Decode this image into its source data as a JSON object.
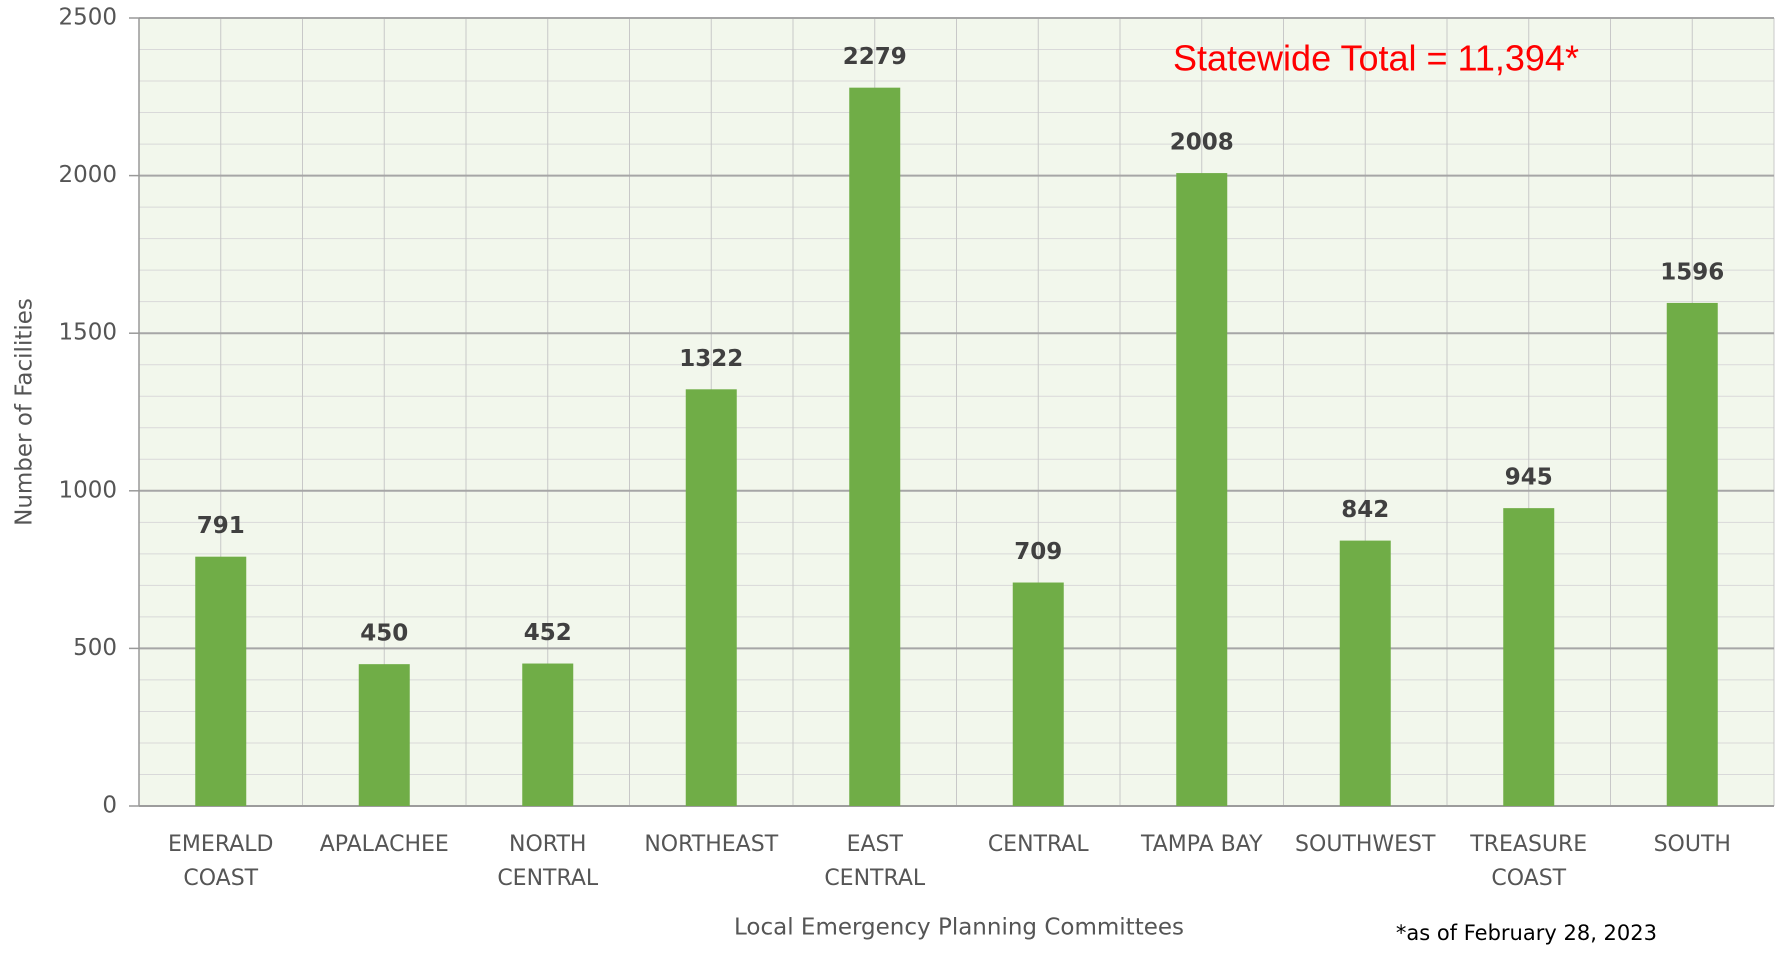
{
  "chart_data": {
    "type": "bar",
    "categories": [
      "EMERALD\nCOAST",
      "APALACHEE",
      "NORTH\nCENTRAL",
      "NORTHEAST",
      "EAST\nCENTRAL",
      "CENTRAL",
      "TAMPA BAY",
      "SOUTHWEST",
      "TREASURE\nCOAST",
      "SOUTH"
    ],
    "values": [
      791,
      450,
      452,
      1322,
      2279,
      709,
      2008,
      842,
      945,
      1596
    ],
    "color": "#70ad47",
    "ylim": [
      0,
      2500
    ],
    "yticks": [
      0,
      500,
      1000,
      1500,
      2000,
      2500
    ],
    "minor_yticks": [
      100,
      200,
      300,
      400,
      600,
      700,
      800,
      900,
      1100,
      1200,
      1300,
      1400,
      1600,
      1700,
      1800,
      1900,
      2100,
      2200,
      2300,
      2400
    ],
    "grid": true,
    "y_label": "Number of Facilities",
    "x_label": "Local Emergency Planning Committees",
    "annotation": "Statewide Total = 11,394*",
    "footnote": "*as of February 28, 2023"
  }
}
